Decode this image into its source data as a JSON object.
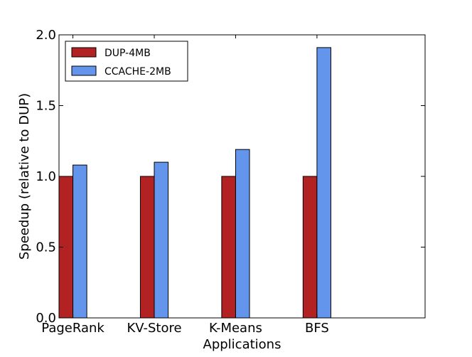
{
  "chart_data": {
    "type": "bar",
    "title": "",
    "xlabel": "Applications",
    "ylabel": "Speedup (relative to DUP)",
    "ylim": [
      0,
      2.0
    ],
    "yticks": [
      0.0,
      0.5,
      1.0,
      1.5,
      2.0
    ],
    "ytick_labels": [
      "0.0",
      "0.5",
      "1.0",
      "1.5",
      "2.0"
    ],
    "categories": [
      "PageRank",
      "KV-Store",
      "K-Means",
      "BFS"
    ],
    "series": [
      {
        "name": "DUP-4MB",
        "color": "#b22222",
        "values": [
          1.0,
          1.0,
          1.0,
          1.0
        ]
      },
      {
        "name": "CCACHE-2MB",
        "color": "#6495ed",
        "values": [
          1.08,
          1.1,
          1.19,
          1.91
        ]
      }
    ],
    "legend_position": "top-left",
    "grid": false
  }
}
